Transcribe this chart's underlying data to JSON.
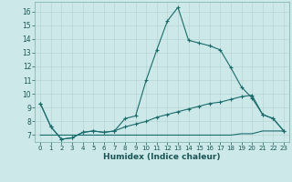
{
  "xlabel": "Humidex (Indice chaleur)",
  "background_color": "#cce8e8",
  "grid_color": "#b8d4d4",
  "line_color": "#1a6b6b",
  "xlim": [
    -0.5,
    23.5
  ],
  "ylim": [
    6.5,
    16.7
  ],
  "yticks": [
    7,
    8,
    9,
    10,
    11,
    12,
    13,
    14,
    15,
    16
  ],
  "xticks": [
    0,
    1,
    2,
    3,
    4,
    5,
    6,
    7,
    8,
    9,
    10,
    11,
    12,
    13,
    14,
    15,
    16,
    17,
    18,
    19,
    20,
    21,
    22,
    23
  ],
  "line1_x": [
    0,
    1,
    2,
    3,
    4,
    5,
    6,
    7,
    8,
    9,
    10,
    11,
    12,
    13,
    14,
    15,
    16,
    17,
    18,
    19,
    20,
    21,
    22,
    23
  ],
  "line1_y": [
    9.3,
    7.6,
    6.7,
    6.8,
    7.2,
    7.3,
    7.2,
    7.3,
    8.2,
    8.4,
    11.0,
    13.2,
    15.3,
    16.3,
    13.9,
    13.7,
    13.5,
    13.2,
    11.9,
    10.5,
    9.7,
    8.5,
    8.2,
    7.3
  ],
  "line2_x": [
    0,
    1,
    2,
    3,
    4,
    5,
    6,
    7,
    8,
    9,
    10,
    11,
    12,
    13,
    14,
    15,
    16,
    17,
    18,
    19,
    20,
    21,
    22,
    23
  ],
  "line2_y": [
    9.3,
    7.6,
    6.7,
    6.8,
    7.2,
    7.3,
    7.2,
    7.3,
    7.6,
    7.8,
    8.0,
    8.3,
    8.5,
    8.7,
    8.9,
    9.1,
    9.3,
    9.4,
    9.6,
    9.8,
    9.9,
    8.5,
    8.2,
    7.3
  ],
  "line3_x": [
    0,
    1,
    2,
    3,
    4,
    5,
    6,
    7,
    8,
    9,
    10,
    11,
    12,
    13,
    14,
    15,
    16,
    17,
    18,
    19,
    20,
    21,
    22,
    23
  ],
  "line3_y": [
    7.0,
    7.0,
    7.0,
    7.0,
    7.0,
    7.0,
    7.0,
    7.0,
    7.0,
    7.0,
    7.0,
    7.0,
    7.0,
    7.0,
    7.0,
    7.0,
    7.0,
    7.0,
    7.0,
    7.1,
    7.1,
    7.3,
    7.3,
    7.3
  ]
}
